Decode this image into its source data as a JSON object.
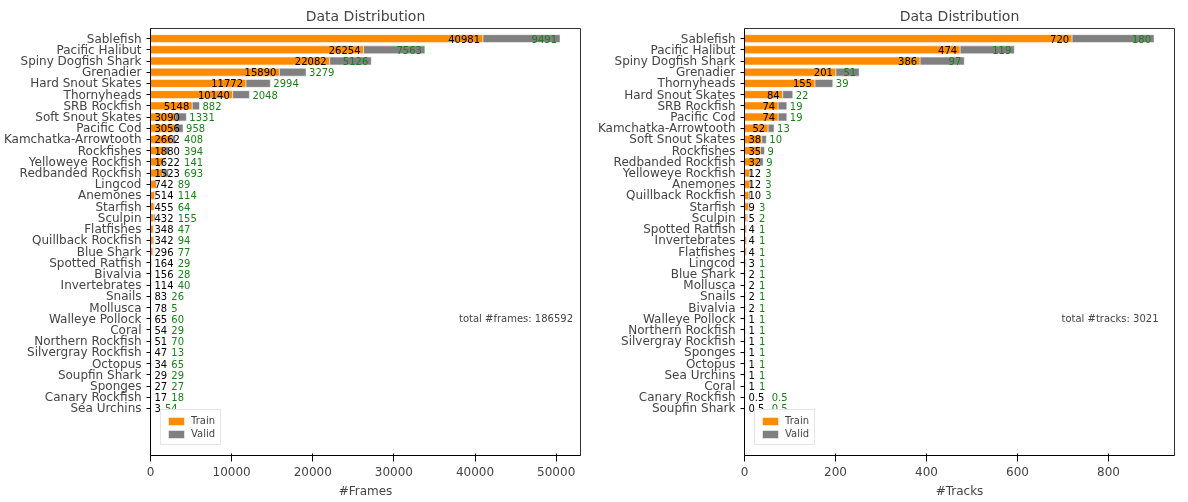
{
  "chart_data": [
    {
      "type": "bar",
      "orientation": "horizontal",
      "stacked": true,
      "title": "Data Distribution",
      "xlabel": "#Frames",
      "categories": [
        "Sablefish",
        "Pacific Halibut",
        "Spiny Dogfish Shark",
        "Grenadier",
        "Hard Snout Skates",
        "Thornyheads",
        "SRB Rockfish",
        "Soft Snout Skates",
        "Pacific Cod",
        "Kamchatka-Arrowtooth",
        "Rockfishes",
        "Yelloweye Rockfish",
        "Redbanded Rockfish",
        "Lingcod",
        "Anemones",
        "Starfish",
        "Sculpin",
        "Flatfishes",
        "Quillback Rockfish",
        "Blue Shark",
        "Spotted Ratfish",
        "Bivalvia",
        "Invertebrates",
        "Snails",
        "Mollusca",
        "Walleye Pollock",
        "Coral",
        "Northern Rockfish",
        "Silvergray Rockfish",
        "Octopus",
        "Soupfin Shark",
        "Sponges",
        "Canary Rockfish",
        "Sea Urchins"
      ],
      "series": [
        {
          "name": "Train",
          "color": "#ff8c00",
          "values": [
            40981,
            26254,
            22082,
            15890,
            11772,
            10140,
            5148,
            3090,
            3056,
            2662,
            1880,
            1622,
            1523,
            742,
            514,
            455,
            432,
            348,
            342,
            296,
            164,
            156,
            114,
            83,
            78,
            65,
            54,
            51,
            47,
            34,
            29,
            27,
            17,
            3
          ]
        },
        {
          "name": "Valid",
          "color": "#808080",
          "values": [
            9491,
            7563,
            5126,
            3279,
            2994,
            2048,
            882,
            1331,
            958,
            408,
            394,
            141,
            693,
            89,
            114,
            64,
            155,
            47,
            94,
            77,
            29,
            28,
            40,
            26,
            5,
            60,
            29,
            70,
            13,
            65,
            29,
            27,
            18,
            54
          ]
        }
      ],
      "xlim": [
        0,
        52996
      ],
      "xticks": [
        0,
        10000,
        20000,
        30000,
        40000,
        50000
      ],
      "data_labels": true,
      "legend": "bottom left",
      "grid": false,
      "annotations": [
        "total #frames: 186592"
      ]
    },
    {
      "type": "bar",
      "orientation": "horizontal",
      "stacked": true,
      "title": "Data Distribution",
      "xlabel": "#Tracks",
      "categories": [
        "Sablefish",
        "Pacific Halibut",
        "Spiny Dogfish Shark",
        "Grenadier",
        "Thornyheads",
        "Hard Snout Skates",
        "SRB Rockfish",
        "Pacific Cod",
        "Kamchatka-Arrowtooth",
        "Soft Snout Skates",
        "Rockfishes",
        "Redbanded Rockfish",
        "Yelloweye Rockfish",
        "Anemones",
        "Quillback Rockfish",
        "Starfish",
        "Sculpin",
        "Spotted Ratfish",
        "Invertebrates",
        "Flatfishes",
        "Lingcod",
        "Blue Shark",
        "Mollusca",
        "Snails",
        "Bivalvia",
        "Walleye Pollock",
        "Northern Rockfish",
        "Silvergray Rockfish",
        "Sponges",
        "Octopus",
        "Sea Urchins",
        "Coral",
        "Canary Rockfish",
        "Soupfin Shark"
      ],
      "series": [
        {
          "name": "Train",
          "color": "#ff8c00",
          "values": [
            720,
            474,
            386,
            201,
            155,
            84,
            74,
            74,
            52,
            38,
            35,
            32,
            12,
            12,
            10,
            9,
            5,
            4,
            4,
            4,
            3,
            2,
            2,
            2,
            2,
            1,
            1,
            1,
            1,
            1,
            1,
            1,
            0.5,
            0.5
          ]
        },
        {
          "name": "Valid",
          "color": "#808080",
          "values": [
            180,
            119,
            97,
            51,
            39,
            22,
            19,
            19,
            13,
            10,
            9,
            9,
            3,
            3,
            3,
            3,
            2,
            1,
            1,
            1,
            1,
            1,
            1,
            1,
            1,
            1,
            1,
            1,
            1,
            1,
            1,
            1,
            0.5,
            0.5
          ]
        }
      ],
      "xlim": [
        0,
        945
      ],
      "xticks": [
        0,
        200,
        400,
        600,
        800
      ],
      "data_labels": true,
      "legend": "bottom left",
      "grid": false,
      "annotations": [
        "total #tracks: 3021"
      ]
    }
  ]
}
